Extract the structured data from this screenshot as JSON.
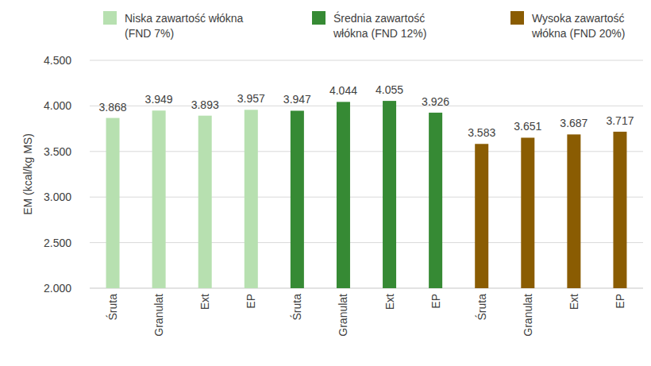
{
  "chart_data": {
    "type": "bar",
    "y_label": "EM (kcal/kg MS)",
    "categories": [
      "Śruta",
      "Granulat",
      "Ext",
      "EP",
      "Śruta",
      "Granulat",
      "Ext",
      "EP",
      "Śruta",
      "Granulat",
      "Ext",
      "EP"
    ],
    "series": [
      {
        "name": "Niska zawartość włókna (FND 7%)",
        "color": "#b7e0b0",
        "values": [
          3868,
          3949,
          3893,
          3957,
          null,
          null,
          null,
          null,
          null,
          null,
          null,
          null
        ],
        "value_labels": [
          "3.868",
          "3.949",
          "3.893",
          "3.957",
          null,
          null,
          null,
          null,
          null,
          null,
          null,
          null
        ]
      },
      {
        "name": "Średnia zawartość włókna (FND 12%)",
        "color": "#368a34",
        "values": [
          null,
          null,
          null,
          null,
          3947,
          4044,
          4055,
          3926,
          null,
          null,
          null,
          null
        ],
        "value_labels": [
          null,
          null,
          null,
          null,
          "3.947",
          "4.044",
          "4.055",
          "3.926",
          null,
          null,
          null,
          null
        ]
      },
      {
        "name": "Wysoka zawartość włókna (FND 20%)",
        "color": "#8a5c02",
        "values": [
          null,
          null,
          null,
          null,
          null,
          null,
          null,
          null,
          3583,
          3651,
          3687,
          3717
        ],
        "value_labels": [
          null,
          null,
          null,
          null,
          null,
          null,
          null,
          null,
          "3.583",
          "3.651",
          "3.687",
          "3.717"
        ]
      }
    ],
    "ylim": [
      2000,
      4500
    ],
    "yticks": [
      {
        "value": 2000,
        "label": "2.000"
      },
      {
        "value": 2500,
        "label": "2.500"
      },
      {
        "value": 3000,
        "label": "3.000"
      },
      {
        "value": 3500,
        "label": "3.500"
      },
      {
        "value": 4000,
        "label": "4.000"
      },
      {
        "value": 4500,
        "label": "4.500"
      }
    ],
    "grid": true,
    "data_labels": true,
    "legend": "top"
  }
}
